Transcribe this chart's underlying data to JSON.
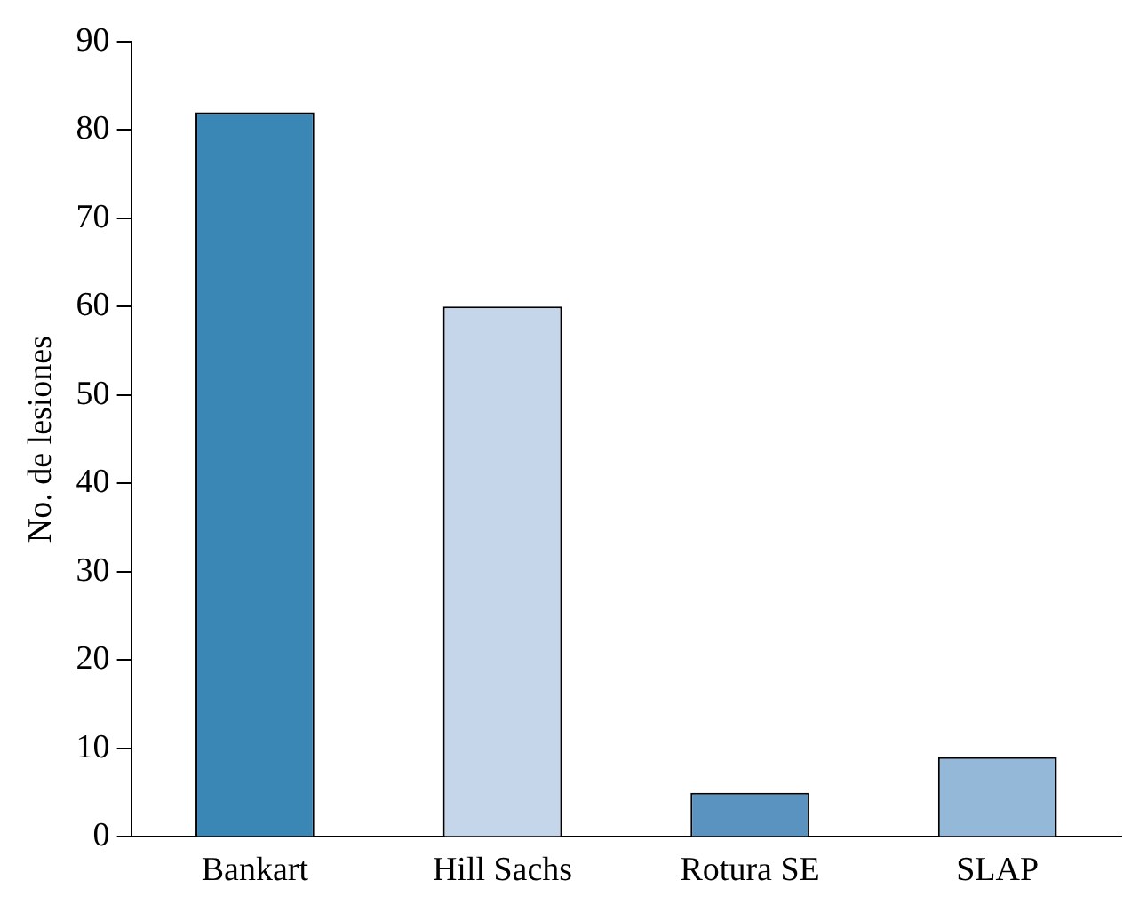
{
  "chart_data": {
    "type": "bar",
    "ylabel": "No. de lesiones",
    "categories": [
      "Bankart",
      "Hill Sachs",
      "Rotura SE",
      "SLAP"
    ],
    "values": [
      82,
      60,
      5,
      9
    ],
    "colors": [
      "#3a87b5",
      "#c6d6ea",
      "#5a93c0",
      "#94b8d8"
    ],
    "ylim": [
      0,
      90
    ],
    "yticks": [
      0,
      10,
      20,
      30,
      40,
      50,
      60,
      70,
      80,
      90
    ],
    "grid": false,
    "legend": false
  }
}
